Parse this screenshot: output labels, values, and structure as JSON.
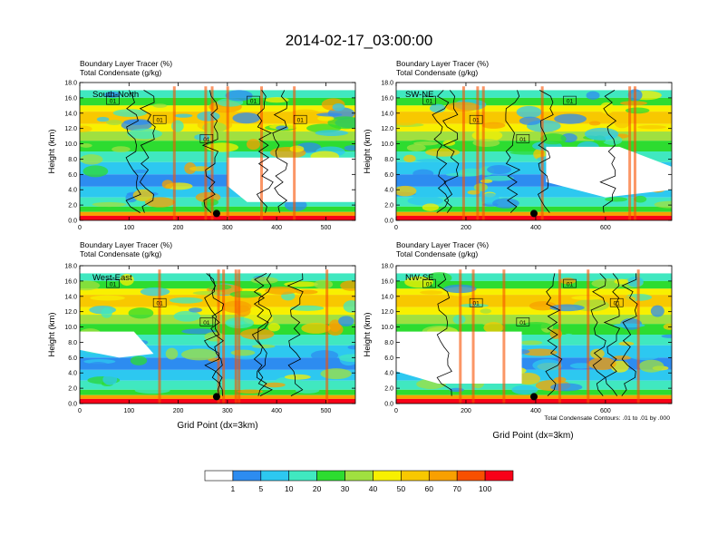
{
  "title": "2014-02-17_03:00:00",
  "colors": {
    "levels": [
      "#ffffff",
      "#2d8cf0",
      "#2dc8f0",
      "#40e8c0",
      "#2ddc30",
      "#a0e040",
      "#f8f000",
      "#f8c800",
      "#f8a000",
      "#f85000",
      "#f80018"
    ],
    "contour": "#000000",
    "marker": "#000000"
  },
  "chart_data": [
    {
      "type": "heatmap",
      "panel_label": "South-North",
      "subtitle_line1": "Boundary Layer Tracer   (%)",
      "subtitle_line2": "Total Condensate   (g/kg)",
      "ylabel": "Height (km)",
      "xlabel": "",
      "xlim": [
        0,
        560
      ],
      "ylim": [
        0,
        18
      ],
      "x_ticks": [
        "0",
        "100",
        "200",
        "300",
        "400",
        "500"
      ],
      "y_ticks": [
        "0.0",
        "2.0",
        "4.0",
        "6.0",
        "8.0",
        "10.0",
        "12.0",
        "14.0",
        "16.0",
        "18.0"
      ],
      "marker_x": 278,
      "contour_labels": [
        "01",
        "01",
        "01",
        "01",
        "01"
      ]
    },
    {
      "type": "heatmap",
      "panel_label": "SW-NE",
      "subtitle_line1": "Boundary Layer Tracer   (%)",
      "subtitle_line2": "Total Condensate   (g/kg)",
      "ylabel": "Height (km)",
      "xlabel": "",
      "xlim": [
        0,
        790
      ],
      "ylim": [
        0,
        18
      ],
      "x_ticks": [
        "0",
        "200",
        "400",
        "600"
      ],
      "y_ticks": [
        "0.0",
        "2.0",
        "4.0",
        "6.0",
        "8.0",
        "10.0",
        "12.0",
        "14.0",
        "16.0",
        "18.0"
      ],
      "marker_x": 395,
      "contour_labels": [
        "01",
        "01",
        "01",
        "01"
      ]
    },
    {
      "type": "heatmap",
      "panel_label": "West-East",
      "subtitle_line1": "Boundary Layer Tracer   (%)",
      "subtitle_line2": "Total Condensate   (g/kg)",
      "ylabel": "Height (km)",
      "xlabel": "Grid Point (dx=3km)",
      "xlim": [
        0,
        560
      ],
      "ylim": [
        0,
        18
      ],
      "x_ticks": [
        "0",
        "100",
        "200",
        "300",
        "400",
        "500"
      ],
      "y_ticks": [
        "0.0",
        "2.0",
        "4.0",
        "6.0",
        "8.0",
        "10.0",
        "12.0",
        "14.0",
        "16.0",
        "18.0"
      ],
      "marker_x": 278,
      "contour_labels": [
        "01",
        "01",
        "01"
      ]
    },
    {
      "type": "heatmap",
      "panel_label": "NW-SE",
      "subtitle_line1": "Boundary Layer Tracer   (%)",
      "subtitle_line2": "Total Condensate   (g/kg)",
      "ylabel": "Height (km)",
      "xlabel": "Grid Point (dx=3km)",
      "footnote": "Total Condensate Contours: .01 to .01 by .000",
      "xlim": [
        0,
        790
      ],
      "ylim": [
        0,
        18
      ],
      "x_ticks": [
        "0",
        "200",
        "400",
        "600"
      ],
      "y_ticks": [
        "0.0",
        "2.0",
        "4.0",
        "6.0",
        "8.0",
        "10.0",
        "12.0",
        "14.0",
        "16.0",
        "18.0"
      ],
      "marker_x": 395,
      "contour_labels": [
        "01",
        "01",
        "01",
        "01",
        "01"
      ]
    }
  ],
  "colorbar": {
    "labels": [
      "1",
      "5",
      "10",
      "20",
      "30",
      "40",
      "50",
      "60",
      "70",
      "100"
    ]
  }
}
